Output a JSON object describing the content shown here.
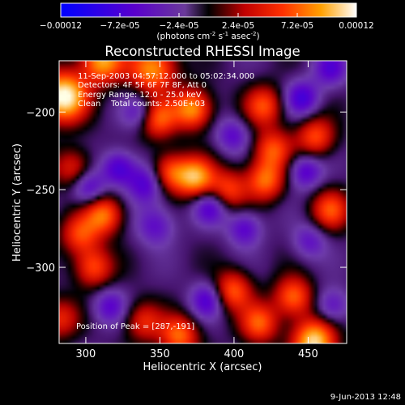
{
  "chart_data": {
    "type": "heatmap",
    "title": "Reconstructed RHESSI Image",
    "xlabel": "Heliocentric X (arcsec)",
    "ylabel": "Heliocentric Y (arcsec)",
    "xlim": [
      282,
      476
    ],
    "ylim": [
      -349,
      -167
    ],
    "xticks": [
      300,
      350,
      400,
      450
    ],
    "yticks": [
      -200,
      -250,
      -300
    ],
    "annotations": [
      "11-Sep-2003 04:57:12.000 to 05:02:34.000",
      "Detectors: 4F 5F 6F 7F 8F, Att 0",
      "Energy Range: 12.0 - 25.0 keV",
      "Clean    Total counts: 2.50E+03"
    ],
    "peak_label": "Position of Peak = [287,-191]",
    "peak": [
      287,
      -191
    ],
    "colorbar": {
      "ticks": [
        "-0.00012",
        "-7.2e-05",
        "-2.4e-05",
        "2.4e-05",
        "7.2e-05",
        "0.00012"
      ],
      "range": [
        -0.00012,
        0.00012
      ],
      "unit_label": "(photons cm",
      "unit_sup1": "-2",
      "unit_mid1": " s",
      "unit_sup2": "-1",
      "unit_mid2": " asec",
      "unit_sup3": "-2",
      "unit_end": ")"
    },
    "sources": [
      {
        "x": 285,
        "y": -190,
        "amp": 1.35,
        "w": 11
      },
      {
        "x": 311,
        "y": -167,
        "amp": 1.0,
        "w": 10
      },
      {
        "x": 345,
        "y": -172,
        "amp": 0.95,
        "w": 11
      },
      {
        "x": 348,
        "y": -204,
        "amp": 0.8,
        "w": 9
      },
      {
        "x": 372,
        "y": -198,
        "amp": 0.95,
        "w": 9
      },
      {
        "x": 374,
        "y": -242,
        "amp": 1.0,
        "w": 9
      },
      {
        "x": 356,
        "y": -239,
        "amp": 0.75,
        "w": 9
      },
      {
        "x": 420,
        "y": -196,
        "amp": 0.7,
        "w": 9
      },
      {
        "x": 426,
        "y": -224,
        "amp": 0.7,
        "w": 9
      },
      {
        "x": 421,
        "y": -244,
        "amp": 0.8,
        "w": 9
      },
      {
        "x": 396,
        "y": -250,
        "amp": 0.65,
        "w": 9
      },
      {
        "x": 455,
        "y": -216,
        "amp": 0.7,
        "w": 9
      },
      {
        "x": 465,
        "y": -263,
        "amp": 0.7,
        "w": 9
      },
      {
        "x": 312,
        "y": -266,
        "amp": 0.85,
        "w": 9
      },
      {
        "x": 296,
        "y": -279,
        "amp": 0.65,
        "w": 9
      },
      {
        "x": 305,
        "y": -300,
        "amp": 0.7,
        "w": 9
      },
      {
        "x": 399,
        "y": -315,
        "amp": 0.75,
        "w": 9
      },
      {
        "x": 440,
        "y": -319,
        "amp": 0.8,
        "w": 9
      },
      {
        "x": 417,
        "y": -336,
        "amp": 0.75,
        "w": 9
      },
      {
        "x": 363,
        "y": -344,
        "amp": 0.8,
        "w": 9
      },
      {
        "x": 339,
        "y": -335,
        "amp": 0.55,
        "w": 9
      },
      {
        "x": 454,
        "y": -348,
        "amp": 1.2,
        "w": 10
      },
      {
        "x": 282,
        "y": -333,
        "amp": 0.55,
        "w": 9
      },
      {
        "x": 291,
        "y": -236,
        "amp": 0.55,
        "w": 9
      },
      {
        "x": 322,
        "y": -236,
        "amp": -0.6,
        "w": 8
      },
      {
        "x": 302,
        "y": -249,
        "amp": -0.55,
        "w": 8
      },
      {
        "x": 337,
        "y": -200,
        "amp": -0.5,
        "w": 8
      },
      {
        "x": 341,
        "y": -246,
        "amp": -0.6,
        "w": 9
      },
      {
        "x": 347,
        "y": -273,
        "amp": -0.45,
        "w": 9
      },
      {
        "x": 382,
        "y": -321,
        "amp": -0.55,
        "w": 8
      },
      {
        "x": 384,
        "y": -261,
        "amp": -0.55,
        "w": 8
      },
      {
        "x": 399,
        "y": -215,
        "amp": -0.45,
        "w": 8
      },
      {
        "x": 446,
        "y": -191,
        "amp": -0.6,
        "w": 8
      },
      {
        "x": 448,
        "y": -238,
        "amp": -0.55,
        "w": 8
      },
      {
        "x": 407,
        "y": -275,
        "amp": -0.5,
        "w": 8
      },
      {
        "x": 451,
        "y": -283,
        "amp": -0.4,
        "w": 8
      },
      {
        "x": 466,
        "y": -325,
        "amp": -0.45,
        "w": 8
      },
      {
        "x": 316,
        "y": -325,
        "amp": -0.45,
        "w": 8
      },
      {
        "x": 465,
        "y": -172,
        "amp": -0.5,
        "w": 8
      }
    ]
  },
  "footer": {
    "date": "9-Jun-2013 12:48"
  }
}
